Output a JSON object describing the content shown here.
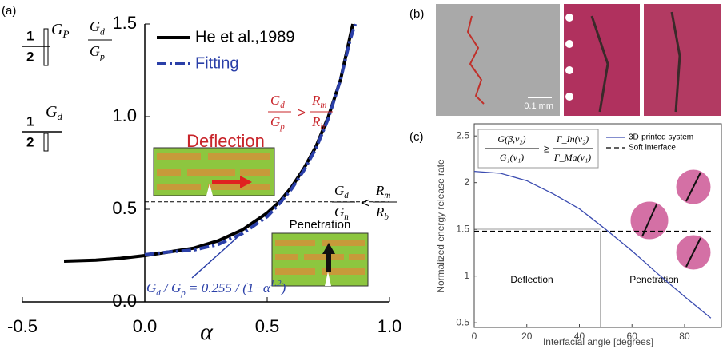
{
  "chart_data": [
    {
      "type": "line",
      "panel": "(a)",
      "x_label": "α",
      "series": [
        {
          "name": "He et al.,1989",
          "color": "#000000",
          "style": "solid",
          "x": [
            -0.33,
            -0.2,
            -0.1,
            0,
            0.1,
            0.2,
            0.3,
            0.4,
            0.5,
            0.55,
            0.6,
            0.65,
            0.7,
            0.75,
            0.8,
            0.83,
            0.85
          ],
          "values": [
            0.22,
            0.225,
            0.235,
            0.25,
            0.27,
            0.29,
            0.33,
            0.39,
            0.48,
            0.54,
            0.62,
            0.72,
            0.84,
            1.0,
            1.2,
            1.38,
            1.5
          ]
        },
        {
          "name": "Fitting",
          "color": "#2a3fa8",
          "style": "dashdot",
          "x": [
            0,
            0.1,
            0.2,
            0.3,
            0.4,
            0.5,
            0.55,
            0.6,
            0.65,
            0.7,
            0.75,
            0.8,
            0.84,
            0.86
          ],
          "values": [
            0.255,
            0.27,
            0.28,
            0.31,
            0.37,
            0.46,
            0.53,
            0.61,
            0.71,
            0.83,
            0.99,
            1.2,
            1.42,
            1.5
          ]
        }
      ],
      "hline": 0.54,
      "xlim": [
        -0.5,
        1.0
      ],
      "ylim": [
        0,
        1.5
      ],
      "xticks": [
        {
          "value": -0.5,
          "label": "-0.5"
        },
        {
          "value": 0,
          "label": "0.0"
        },
        {
          "value": 0.5,
          "label": "0.5"
        },
        {
          "value": 1,
          "label": "1.0"
        }
      ],
      "yticks": [
        {
          "value": 0,
          "label": "0.0"
        },
        {
          "value": 0.5,
          "label": "0.5"
        },
        {
          "value": 1,
          "label": "1.0"
        },
        {
          "value": 1.5,
          "label": "1.5"
        }
      ],
      "icons": [
        {
          "num": "1",
          "den": "2",
          "sym": [
            "G",
            "P"
          ]
        },
        {
          "num": "1",
          "den": "2",
          "sym": [
            "G",
            "d"
          ]
        }
      ],
      "ratio": {
        "num": [
          "G",
          "d"
        ],
        "den": [
          "G",
          "p"
        ]
      },
      "deflection": "Deflection",
      "penetration": "Penetration",
      "ineq_top": {
        "a": [
          "G",
          "d"
        ],
        "b": [
          "G",
          "p"
        ],
        "rel": ">",
        "c": [
          "R",
          "m"
        ],
        "d": [
          "R",
          "b"
        ]
      },
      "ineq_mid": {
        "a": [
          "G",
          "d"
        ],
        "b": [
          "G",
          "n"
        ],
        "rel": "<",
        "c": [
          "R",
          "m"
        ],
        "d": [
          "R",
          "b"
        ]
      },
      "fit_eq": [
        "G",
        "d",
        " / ",
        "G",
        "p",
        " = 0.255 / (1−α",
        "1.2",
        ")"
      ]
    },
    {
      "type": "image",
      "panel": "(b)",
      "scale_bar": "0.1 mm"
    },
    {
      "type": "line",
      "panel": "(c)",
      "x_label": "Interfacial angle [degrees]",
      "y_label": "Normalized energy release rate",
      "x": [
        0,
        10,
        20,
        30,
        40,
        50,
        60,
        70,
        80,
        90
      ],
      "series": [
        {
          "name": "3D-printed system",
          "color": "#3a4bb0",
          "style": "solid",
          "values": [
            2.12,
            2.1,
            2.02,
            1.88,
            1.72,
            1.5,
            1.27,
            1.02,
            0.78,
            0.55
          ]
        },
        {
          "name": "Soft interface",
          "color": "#000000",
          "style": "dashed",
          "values": [
            1.48,
            1.48,
            1.48,
            1.48,
            1.48,
            1.48,
            1.48,
            1.48,
            1.48,
            1.48
          ]
        }
      ],
      "vline": 48,
      "xlim": [
        0,
        94
      ],
      "ylim": [
        0.45,
        2.63
      ],
      "xticks": [
        0,
        20,
        40,
        60,
        80
      ],
      "yticks": [
        0.5,
        1,
        1.5,
        2,
        2.5
      ],
      "regions": [
        "Deflection",
        "Penetration"
      ],
      "criterion": {
        "n1": "G(β,ν₂)",
        "d1": "G₁(ν₁)",
        "rel": "≥",
        "n2": "Γ_In(ν₂)",
        "d2": "Γ_Ma(ν₁)"
      }
    }
  ]
}
